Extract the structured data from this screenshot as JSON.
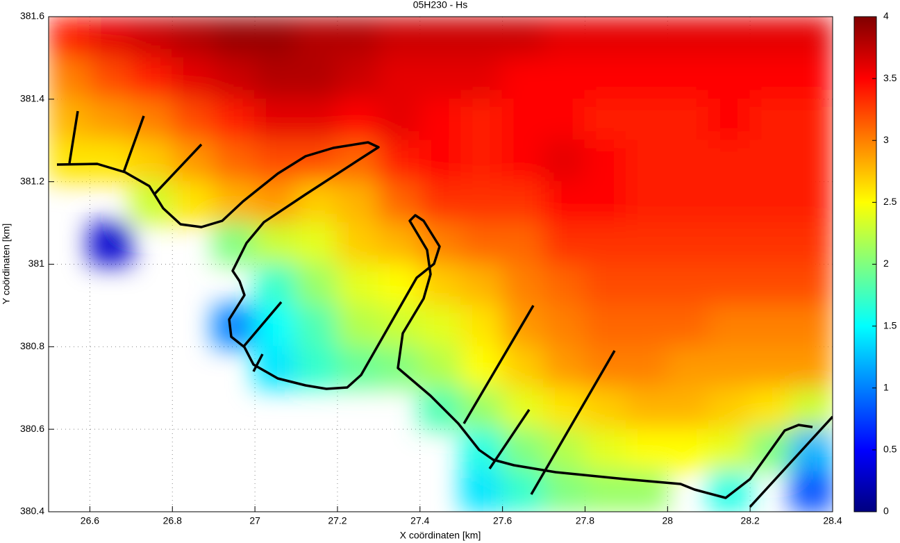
{
  "chart_data": {
    "type": "heatmap",
    "title": "05H230 - Hs",
    "x_label": "X coördinaten [km]",
    "y_label": "Y coördinaten [km]",
    "xlim": [
      26.5,
      28.4
    ],
    "xticks": [
      26.6,
      26.8,
      27,
      27.2,
      27.4,
      27.6,
      27.8,
      28,
      28.2,
      28.4
    ],
    "ylim": [
      380.4,
      381.6
    ],
    "yticks": [
      380.4,
      380.6,
      380.8,
      381,
      381.2,
      381.4,
      381.6
    ],
    "grid": true,
    "colormap": "jet",
    "clim": [
      0,
      4
    ],
    "cticks": [
      0,
      0.5,
      1,
      1.5,
      2,
      2.5,
      3,
      3.5,
      4
    ],
    "x": [
      26.55,
      26.65,
      26.75,
      26.85,
      26.95,
      27.05,
      27.15,
      27.25,
      27.35,
      27.45,
      27.55,
      27.65,
      27.75,
      27.85,
      27.95,
      28.05,
      28.15,
      28.25,
      28.35
    ],
    "y": [
      381.55,
      381.45,
      381.35,
      381.25,
      381.15,
      381.05,
      380.95,
      380.85,
      380.75,
      380.65,
      380.55,
      380.45
    ],
    "z": [
      [
        3.4,
        3.6,
        3.7,
        3.8,
        3.9,
        3.9,
        3.8,
        3.8,
        3.7,
        3.7,
        3.7,
        3.7,
        3.6,
        3.6,
        3.6,
        3.6,
        3.6,
        3.6,
        3.6
      ],
      [
        3.0,
        3.2,
        3.4,
        3.6,
        3.7,
        3.8,
        3.8,
        3.7,
        3.6,
        3.6,
        3.6,
        3.5,
        3.5,
        3.5,
        3.5,
        3.5,
        3.5,
        3.5,
        3.5
      ],
      [
        2.8,
        2.9,
        3.0,
        3.2,
        3.4,
        3.6,
        3.6,
        3.5,
        3.6,
        3.5,
        3.4,
        3.5,
        3.5,
        3.4,
        3.4,
        3.4,
        3.5,
        3.4,
        3.4
      ],
      [
        2.6,
        2.6,
        2.7,
        2.9,
        3.1,
        3.2,
        3.2,
        3.1,
        3.4,
        3.5,
        3.4,
        3.5,
        3.6,
        3.5,
        3.4,
        3.4,
        3.4,
        3.4,
        3.4
      ],
      [
        null,
        null,
        2.3,
        2.6,
        2.8,
        2.9,
        2.7,
        2.8,
        3.1,
        3.3,
        3.3,
        3.3,
        3.5,
        3.5,
        3.4,
        3.4,
        3.4,
        3.4,
        3.4
      ],
      [
        null,
        0.3,
        null,
        null,
        2.0,
        2.3,
        2.4,
        2.7,
        2.8,
        3.0,
        3.1,
        3.1,
        3.3,
        3.3,
        3.3,
        3.3,
        3.3,
        3.3,
        3.3
      ],
      [
        null,
        null,
        null,
        null,
        null,
        1.7,
        2.1,
        2.4,
        2.5,
        2.7,
        2.8,
        3.0,
        3.1,
        3.2,
        3.2,
        3.2,
        3.2,
        3.2,
        3.2
      ],
      [
        null,
        null,
        null,
        null,
        1.0,
        1.5,
        1.8,
        2.2,
        2.3,
        2.4,
        2.6,
        2.9,
        3.0,
        3.1,
        3.1,
        3.1,
        3.0,
        3.0,
        3.0
      ],
      [
        null,
        null,
        null,
        null,
        null,
        1.4,
        1.7,
        1.9,
        2.0,
        2.2,
        2.5,
        2.7,
        2.9,
        3.0,
        3.0,
        2.9,
        2.9,
        2.9,
        2.9
      ],
      [
        null,
        null,
        null,
        null,
        null,
        null,
        null,
        null,
        null,
        1.8,
        2.1,
        2.4,
        2.6,
        2.7,
        2.8,
        2.8,
        2.7,
        2.6,
        2.3
      ],
      [
        null,
        null,
        null,
        null,
        null,
        null,
        null,
        null,
        null,
        null,
        1.6,
        2.0,
        2.2,
        2.4,
        2.5,
        2.5,
        2.4,
        2.0,
        1.2
      ],
      [
        null,
        null,
        null,
        null,
        null,
        null,
        null,
        null,
        null,
        null,
        1.4,
        1.7,
        2.0,
        2.1,
        2.1,
        null,
        1.6,
        null,
        0.8
      ]
    ]
  }
}
